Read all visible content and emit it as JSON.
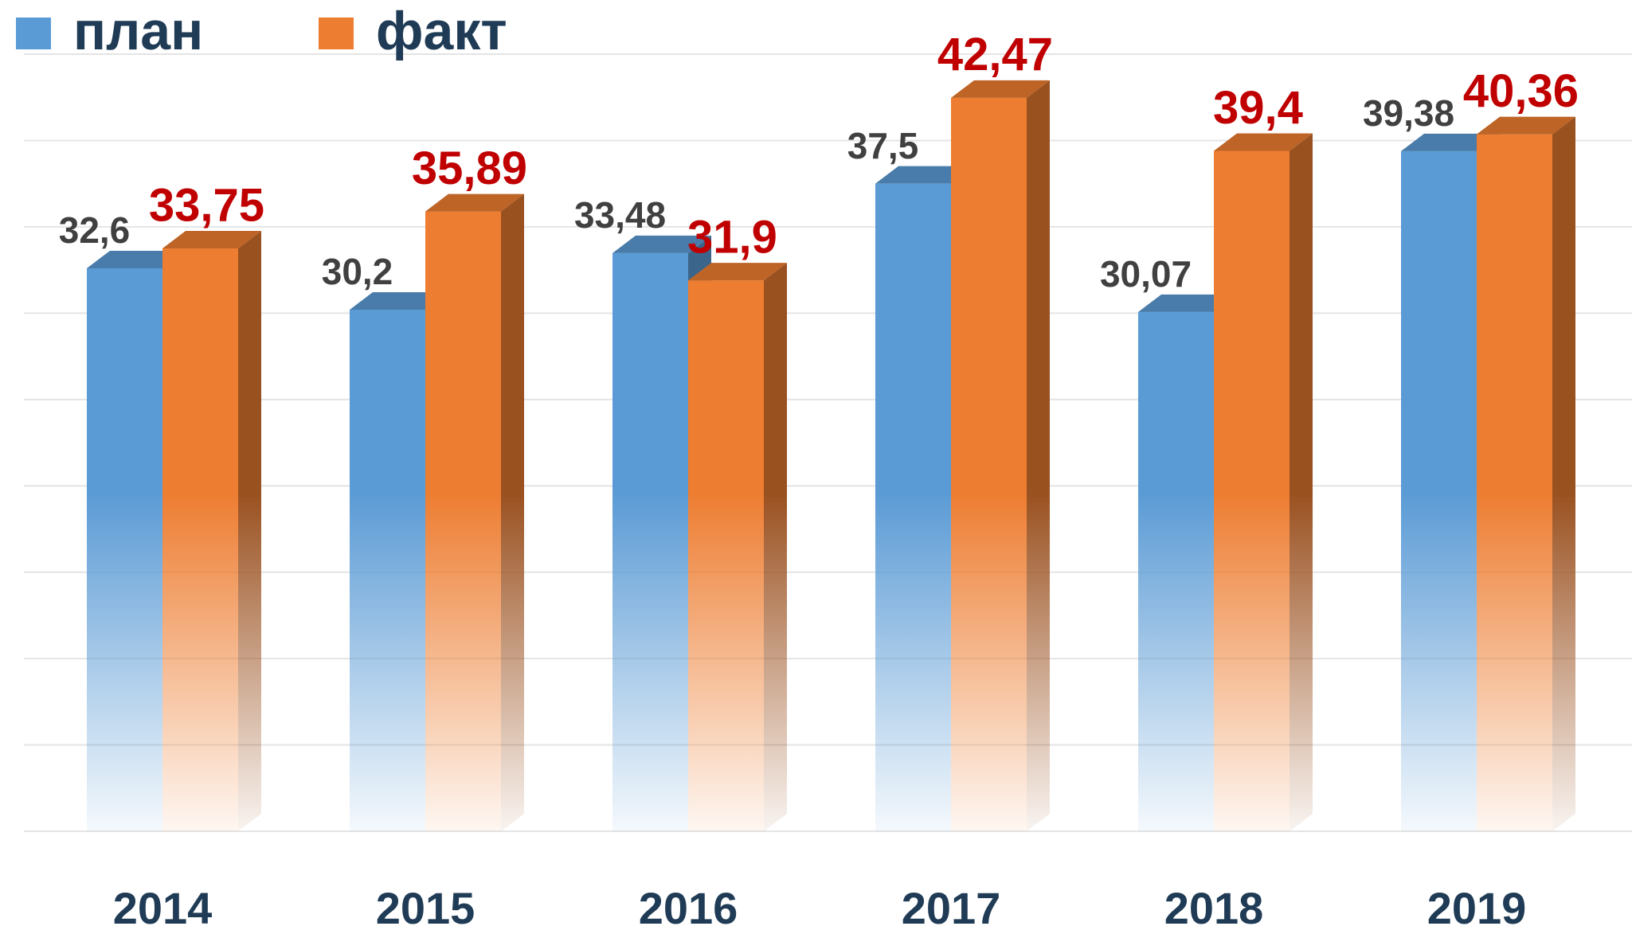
{
  "chart_data": {
    "type": "bar3d",
    "categories": [
      "2014",
      "2015",
      "2016",
      "2017",
      "2018",
      "2019"
    ],
    "series": [
      {
        "name": "план",
        "color": "#5b9bd5",
        "values": [
          32.6,
          30.2,
          33.48,
          37.5,
          30.07,
          39.38
        ],
        "value_labels": [
          "32,6",
          "30,2",
          "33,48",
          "37,5",
          "30,07",
          "39,38"
        ]
      },
      {
        "name": "факт",
        "color": "#ed7d31",
        "values": [
          33.75,
          35.89,
          31.9,
          42.47,
          39.4,
          40.36
        ],
        "value_labels": [
          "33,75",
          "35,89",
          "31,9",
          "42,47",
          "39,4",
          "40,36"
        ]
      }
    ],
    "ylim": [
      0,
      45
    ],
    "yticks": [
      0,
      5,
      10,
      15,
      20,
      25,
      30,
      35,
      40,
      45
    ],
    "grid": true
  }
}
